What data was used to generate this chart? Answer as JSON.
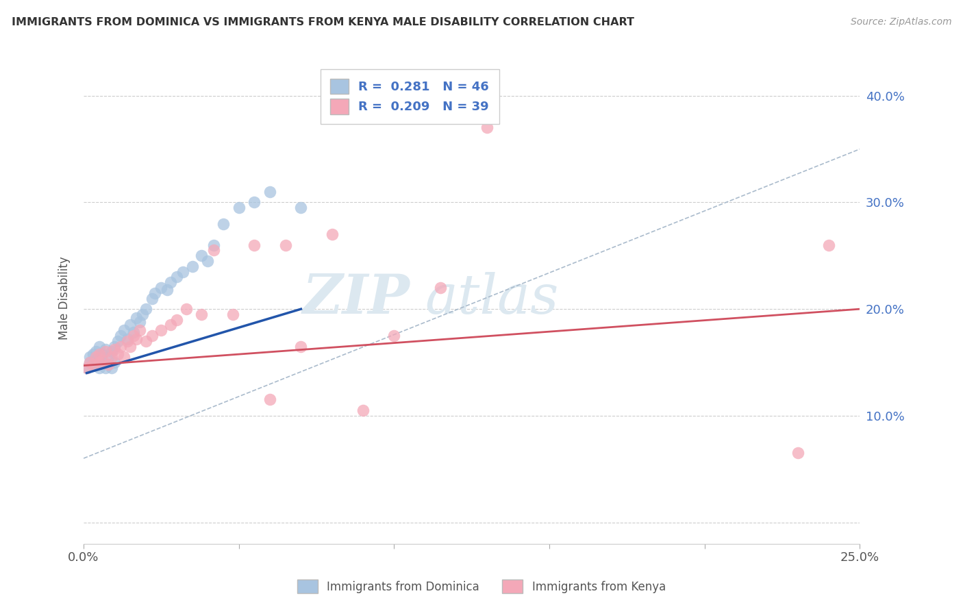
{
  "title": "IMMIGRANTS FROM DOMINICA VS IMMIGRANTS FROM KENYA MALE DISABILITY CORRELATION CHART",
  "source": "Source: ZipAtlas.com",
  "ylabel": "Male Disability",
  "xlim": [
    0.0,
    0.25
  ],
  "ylim": [
    -0.02,
    0.44
  ],
  "x_ticks": [
    0.0,
    0.05,
    0.1,
    0.15,
    0.2,
    0.25
  ],
  "x_tick_labels": [
    "0.0%",
    "",
    "",
    "",
    "",
    "25.0%"
  ],
  "y_ticks": [
    0.0,
    0.1,
    0.2,
    0.3,
    0.4
  ],
  "y_tick_labels": [
    "",
    "10.0%",
    "20.0%",
    "30.0%",
    "40.0%"
  ],
  "dominica_color": "#a8c4e0",
  "kenya_color": "#f4a8b8",
  "dominica_line_color": "#2255aa",
  "kenya_line_color": "#d05060",
  "dashed_line_color": "#aabbcc",
  "watermark_color": "#dce8f0",
  "dominica_R": 0.281,
  "dominica_N": 46,
  "kenya_R": 0.209,
  "kenya_N": 39,
  "dominica_scatter_x": [
    0.001,
    0.002,
    0.002,
    0.003,
    0.003,
    0.004,
    0.004,
    0.005,
    0.005,
    0.005,
    0.006,
    0.006,
    0.007,
    0.007,
    0.008,
    0.008,
    0.009,
    0.009,
    0.01,
    0.01,
    0.011,
    0.012,
    0.013,
    0.014,
    0.015,
    0.016,
    0.017,
    0.018,
    0.019,
    0.02,
    0.022,
    0.023,
    0.025,
    0.027,
    0.028,
    0.03,
    0.032,
    0.035,
    0.038,
    0.04,
    0.042,
    0.045,
    0.05,
    0.055,
    0.06,
    0.07
  ],
  "dominica_scatter_y": [
    0.145,
    0.15,
    0.155,
    0.148,
    0.158,
    0.152,
    0.16,
    0.145,
    0.155,
    0.165,
    0.15,
    0.158,
    0.145,
    0.162,
    0.148,
    0.155,
    0.145,
    0.16,
    0.15,
    0.165,
    0.17,
    0.175,
    0.18,
    0.172,
    0.185,
    0.178,
    0.192,
    0.188,
    0.195,
    0.2,
    0.21,
    0.215,
    0.22,
    0.218,
    0.225,
    0.23,
    0.235,
    0.24,
    0.25,
    0.245,
    0.26,
    0.28,
    0.295,
    0.3,
    0.31,
    0.295
  ],
  "kenya_scatter_x": [
    0.001,
    0.002,
    0.003,
    0.004,
    0.005,
    0.005,
    0.006,
    0.007,
    0.008,
    0.009,
    0.01,
    0.011,
    0.012,
    0.013,
    0.014,
    0.015,
    0.016,
    0.017,
    0.018,
    0.02,
    0.022,
    0.025,
    0.028,
    0.03,
    0.033,
    0.038,
    0.042,
    0.048,
    0.055,
    0.06,
    0.065,
    0.07,
    0.08,
    0.09,
    0.1,
    0.115,
    0.13,
    0.23,
    0.24
  ],
  "kenya_scatter_y": [
    0.145,
    0.15,
    0.148,
    0.155,
    0.15,
    0.158,
    0.152,
    0.16,
    0.148,
    0.155,
    0.162,
    0.158,
    0.165,
    0.155,
    0.17,
    0.165,
    0.175,
    0.172,
    0.18,
    0.17,
    0.175,
    0.18,
    0.185,
    0.19,
    0.2,
    0.195,
    0.255,
    0.195,
    0.26,
    0.115,
    0.26,
    0.165,
    0.27,
    0.105,
    0.175,
    0.22,
    0.37,
    0.065,
    0.26
  ],
  "dominica_line_x": [
    0.001,
    0.07
  ],
  "dominica_line_y": [
    0.14,
    0.2
  ],
  "kenya_line_x": [
    0.0,
    0.25
  ],
  "kenya_line_y": [
    0.147,
    0.2
  ],
  "dashed_line_x": [
    0.0,
    0.25
  ],
  "dashed_line_y": [
    0.06,
    0.35
  ]
}
